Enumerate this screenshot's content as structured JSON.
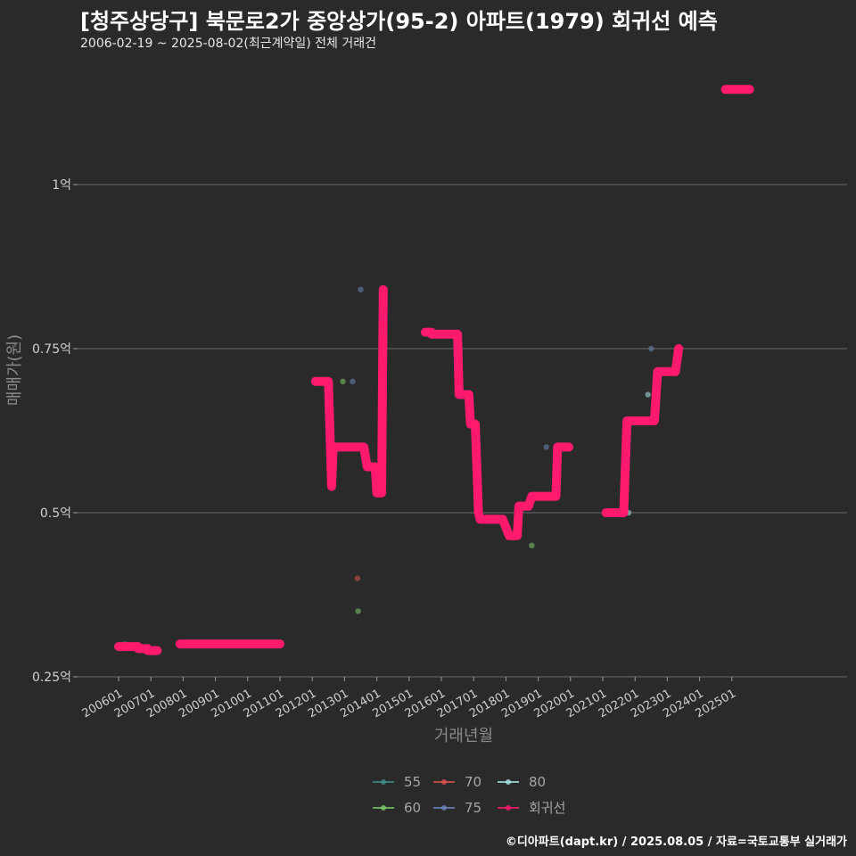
{
  "chart_data": {
    "type": "scatter+step-line",
    "title": "[청주상당구] 북문로2가 중앙상가(95-2) 아파트(1979) 회귀선 예측",
    "subtitle": "2006-02-19 ~ 2025-08-02(최근계약일) 전체 거래건",
    "xlabel": "거래년월",
    "ylabel": "매매가(원)",
    "x_range": [
      2005.3,
      2027.4
    ],
    "ylim": [
      0.25,
      1.22
    ],
    "y_ticks": [
      {
        "value": 0.25,
        "label": "0.25억"
      },
      {
        "value": 0.5,
        "label": "0.5억"
      },
      {
        "value": 0.75,
        "label": "0.75억"
      },
      {
        "value": 1.0,
        "label": "1억"
      }
    ],
    "x_ticks": [
      {
        "value": 2006.0,
        "label": "200601"
      },
      {
        "value": 2007.0,
        "label": "200701"
      },
      {
        "value": 2008.0,
        "label": "200801"
      },
      {
        "value": 2009.0,
        "label": "200901"
      },
      {
        "value": 2010.0,
        "label": "201001"
      },
      {
        "value": 2011.0,
        "label": "201101"
      },
      {
        "value": 2012.0,
        "label": "201201"
      },
      {
        "value": 2013.0,
        "label": "201301"
      },
      {
        "value": 2014.0,
        "label": "201401"
      },
      {
        "value": 2015.0,
        "label": "201501"
      },
      {
        "value": 2016.0,
        "label": "201601"
      },
      {
        "value": 2017.0,
        "label": "201701"
      },
      {
        "value": 2018.0,
        "label": "201801"
      },
      {
        "value": 2019.0,
        "label": "201901"
      },
      {
        "value": 2020.0,
        "label": "202001"
      },
      {
        "value": 2021.0,
        "label": "202101"
      },
      {
        "value": 2022.0,
        "label": "202201"
      },
      {
        "value": 2023.0,
        "label": "202301"
      },
      {
        "value": 2024.0,
        "label": "202401"
      },
      {
        "value": 2025.0,
        "label": "202501"
      }
    ],
    "series": [
      {
        "name": "55",
        "color": "#3e8f8a",
        "points": [
          [
            2006.2,
            0.3
          ],
          [
            2006.6,
            0.295
          ]
        ]
      },
      {
        "name": "60",
        "color": "#7fc86a",
        "points": [
          [
            2012.95,
            0.7
          ],
          [
            2013.42,
            0.35
          ],
          [
            2018.8,
            0.45
          ]
        ]
      },
      {
        "name": "70",
        "color": "#d9534f",
        "points": [
          [
            2013.4,
            0.4
          ]
        ]
      },
      {
        "name": "75",
        "color": "#6b86b8",
        "points": [
          [
            2013.25,
            0.7
          ],
          [
            2013.5,
            0.84
          ],
          [
            2019.25,
            0.6
          ],
          [
            2022.5,
            0.75
          ]
        ]
      },
      {
        "name": "80",
        "color": "#a8e6e2",
        "points": [
          [
            2021.8,
            0.5
          ],
          [
            2022.4,
            0.68
          ]
        ]
      }
    ],
    "regression_line": {
      "name": "회귀선",
      "color": "#ff1a6e",
      "segments": [
        [
          [
            2006.0,
            0.296
          ],
          [
            2006.6,
            0.296
          ],
          [
            2006.6,
            0.293
          ],
          [
            2006.9,
            0.293
          ],
          [
            2006.9,
            0.29
          ],
          [
            2007.2,
            0.29
          ]
        ],
        [
          [
            2007.9,
            0.3
          ],
          [
            2011.0,
            0.3
          ]
        ],
        [
          [
            2012.1,
            0.7
          ],
          [
            2012.5,
            0.7
          ],
          [
            2012.6,
            0.54
          ],
          [
            2012.65,
            0.6
          ],
          [
            2013.6,
            0.6
          ],
          [
            2013.7,
            0.57
          ],
          [
            2013.95,
            0.57
          ],
          [
            2014.0,
            0.53
          ],
          [
            2014.15,
            0.53
          ],
          [
            2014.2,
            0.84
          ]
        ],
        [
          [
            2015.5,
            0.775
          ],
          [
            2015.7,
            0.775
          ],
          [
            2015.7,
            0.772
          ],
          [
            2016.5,
            0.772
          ],
          [
            2016.55,
            0.68
          ],
          [
            2016.85,
            0.68
          ],
          [
            2016.9,
            0.635
          ],
          [
            2017.05,
            0.635
          ],
          [
            2017.15,
            0.5
          ],
          [
            2017.2,
            0.49
          ],
          [
            2017.9,
            0.49
          ],
          [
            2018.1,
            0.465
          ],
          [
            2018.35,
            0.465
          ],
          [
            2018.4,
            0.51
          ],
          [
            2018.7,
            0.51
          ],
          [
            2018.8,
            0.525
          ],
          [
            2019.55,
            0.525
          ],
          [
            2019.6,
            0.6
          ],
          [
            2019.95,
            0.6
          ]
        ],
        [
          [
            2021.1,
            0.5
          ],
          [
            2021.65,
            0.5
          ],
          [
            2021.75,
            0.64
          ],
          [
            2022.6,
            0.64
          ],
          [
            2022.7,
            0.715
          ],
          [
            2023.25,
            0.715
          ],
          [
            2023.35,
            0.75
          ]
        ],
        [
          [
            2024.8,
            1.145
          ],
          [
            2025.55,
            1.145
          ]
        ]
      ]
    }
  },
  "legend": {
    "items": [
      {
        "label": "55",
        "color": "#3e8f8a"
      },
      {
        "label": "70",
        "color": "#d9534f"
      },
      {
        "label": "80",
        "color": "#a8e6e2"
      },
      {
        "label": "60",
        "color": "#7fc86a"
      },
      {
        "label": "75",
        "color": "#6b86b8"
      },
      {
        "label": "회귀선",
        "color": "#ff1a6e"
      }
    ]
  },
  "footer": "©디아파트(dapt.kr) / 2025.08.05 / 자료=국토교통부 실거래가"
}
